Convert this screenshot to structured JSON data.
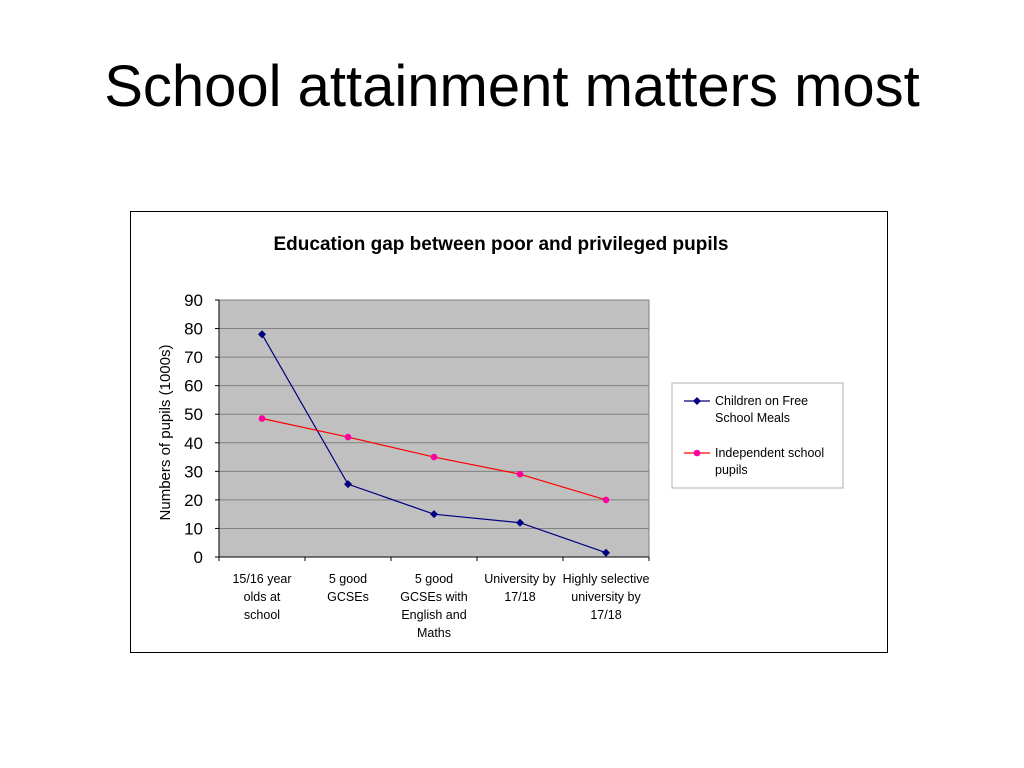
{
  "slide": {
    "title": "School attainment matters most"
  },
  "chart_data": {
    "type": "line",
    "title": "Education gap between poor and privileged pupils",
    "xlabel": "",
    "ylabel": "Numbers of pupils (1000s)",
    "ylim": [
      0,
      90
    ],
    "yticks": [
      "0",
      "10",
      "20",
      "30",
      "40",
      "50",
      "60",
      "70",
      "80",
      "90"
    ],
    "categories": [
      [
        "15/16 year",
        "olds at",
        "school"
      ],
      [
        "5 good",
        "GCSEs"
      ],
      [
        "5 good",
        "GCSEs with",
        "English and",
        "Maths"
      ],
      [
        "University by",
        "17/18"
      ],
      [
        "Highly selective",
        "university by",
        "17/18"
      ]
    ],
    "grid": true,
    "plot_background": "#c0c0c0",
    "legend_position": "right",
    "series": [
      {
        "name": "Children on Free School Meals",
        "legend_lines": [
          "Children on Free",
          "School Meals"
        ],
        "color": "#000080",
        "marker": "diamond",
        "values": [
          78,
          25.5,
          15,
          12,
          1.5
        ]
      },
      {
        "name": "Independent school pupils",
        "legend_lines": [
          "Independent school",
          "pupils"
        ],
        "color": "#ff0000",
        "marker_color": "#ff00a0",
        "marker": "circle",
        "values": [
          48.5,
          42,
          35,
          29,
          20
        ]
      }
    ]
  }
}
